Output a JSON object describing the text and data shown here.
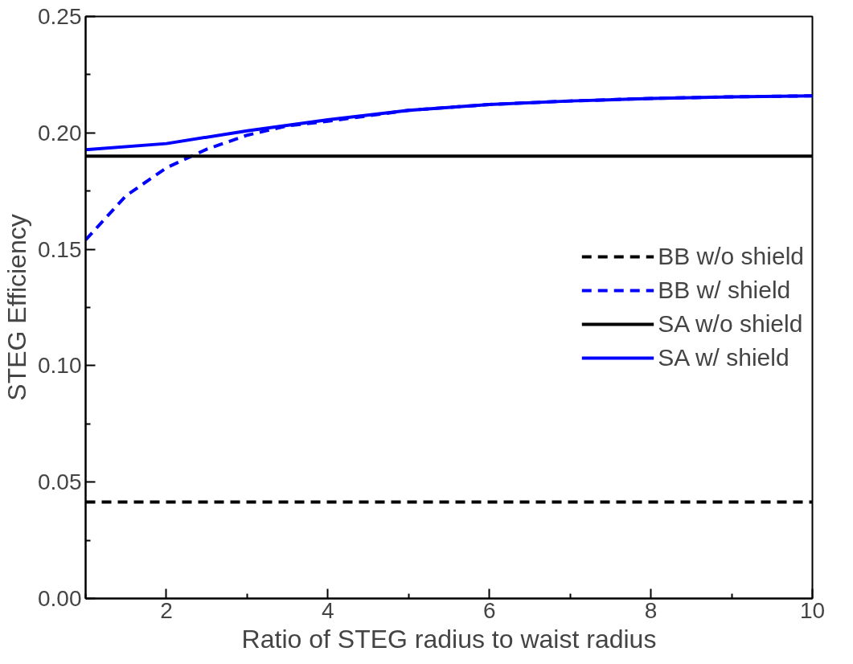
{
  "chart_data": {
    "type": "line",
    "xlabel": "Ratio of STEG radius to waist radius",
    "ylabel": "STEG Efficiency",
    "xlim": [
      1,
      10
    ],
    "ylim": [
      0,
      0.25
    ],
    "xticks": [
      {
        "value": 1,
        "label": null
      },
      2,
      {
        "value": 3,
        "label": null
      },
      4,
      {
        "value": 5,
        "label": null
      },
      6,
      {
        "value": 7,
        "label": null
      },
      8,
      {
        "value": 9,
        "label": null
      },
      10
    ],
    "yticks": [
      "0.00",
      {
        "value": 0.025,
        "label": null
      },
      {
        "value": 0.05,
        "label": "0.05"
      },
      {
        "value": 0.075,
        "label": null
      },
      {
        "value": 0.1,
        "label": "0.10"
      },
      {
        "value": 0.125,
        "label": null
      },
      {
        "value": 0.15,
        "label": "0.15"
      },
      {
        "value": 0.175,
        "label": null
      },
      {
        "value": 0.2,
        "label": "0.20"
      },
      {
        "value": 0.225,
        "label": null
      },
      {
        "value": 0.25,
        "label": "0.25"
      }
    ],
    "legend": "right",
    "grid": false,
    "series": [
      {
        "name": "BB w/o shield",
        "color": "#000000",
        "line_style": "dashed",
        "x": [
          1,
          10
        ],
        "values": [
          0.0414,
          0.0414
        ]
      },
      {
        "name": "BB w/ shield",
        "color": "#0000ff",
        "line_style": "dashed",
        "x": [
          1,
          1.5,
          2,
          2.5,
          3,
          3.5,
          4,
          5,
          6,
          7,
          8,
          9,
          10
        ],
        "values": [
          0.154,
          0.173,
          0.185,
          0.193,
          0.199,
          0.203,
          0.205,
          0.2097,
          0.2122,
          0.2137,
          0.2148,
          0.2155,
          0.2159
        ]
      },
      {
        "name": "SA w/o shield",
        "color": "#000000",
        "line_style": "solid",
        "x": [
          1,
          10
        ],
        "values": [
          0.19,
          0.19
        ]
      },
      {
        "name": "SA w/ shield",
        "color": "#0000ff",
        "line_style": "solid",
        "x": [
          1,
          2,
          3,
          4,
          5,
          6,
          7,
          8,
          9,
          10
        ],
        "values": [
          0.1928,
          0.1954,
          0.2009,
          0.2056,
          0.2097,
          0.2122,
          0.2137,
          0.2148,
          0.2155,
          0.2159
        ]
      }
    ]
  }
}
